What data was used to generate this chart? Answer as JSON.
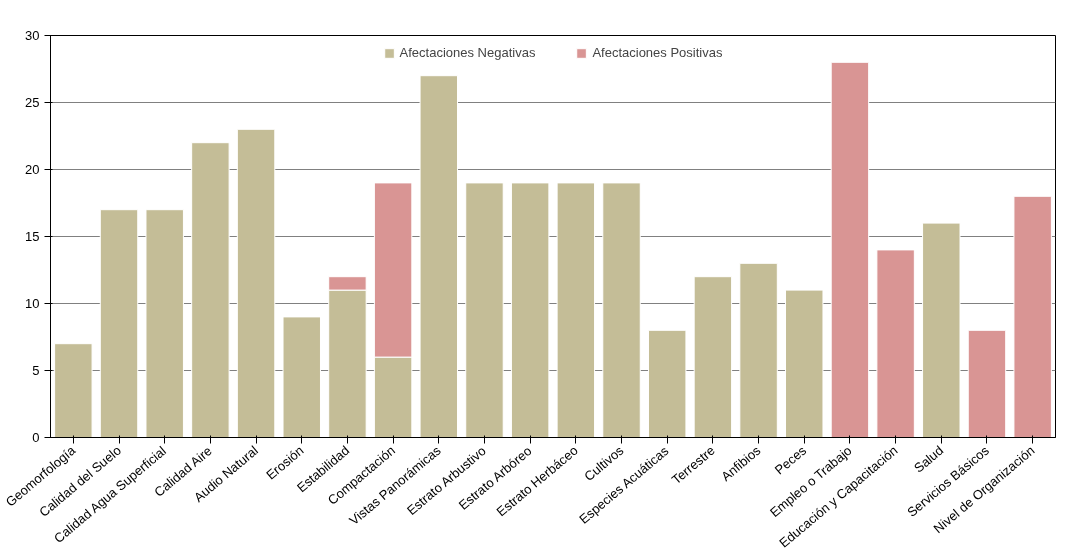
{
  "chart_data": {
    "type": "bar",
    "stacked": true,
    "categories": [
      "Geomorfología",
      "Calidad del Suelo",
      "Calidad Agua Superficial",
      "Calidad Aire",
      "Audio Natural",
      "Erosión",
      "Estabilidad",
      "Compactación",
      "Vistas Panorámicas",
      "Estrato Arbustivo",
      "Estrato Arbóreo",
      "Estrato Herbáceo",
      "Cultivos",
      "Especies Acuáticas",
      "Terrestre",
      "Anfibios",
      "Peces",
      "Empleo o Trabajo",
      "Educación y Capacitación",
      "Salud",
      "Servicios Básicos",
      "Nivel de Organización"
    ],
    "series": [
      {
        "name": "Afectaciones Negativas",
        "color": "#c4bd97",
        "values": [
          7,
          17,
          17,
          22,
          23,
          9,
          11,
          6,
          27,
          19,
          19,
          19,
          19,
          8,
          12,
          13,
          11,
          null,
          null,
          16,
          null,
          null
        ]
      },
      {
        "name": "Afectaciones Positivas",
        "color": "#d99594",
        "values": [
          null,
          null,
          null,
          null,
          null,
          null,
          1,
          13,
          null,
          null,
          null,
          null,
          null,
          null,
          null,
          null,
          null,
          28,
          14,
          null,
          8,
          18
        ]
      }
    ],
    "ylim": [
      0,
      30
    ],
    "yticks": [
      0,
      5,
      10,
      15,
      20,
      25,
      30
    ],
    "grid": "y",
    "legend": "top"
  }
}
